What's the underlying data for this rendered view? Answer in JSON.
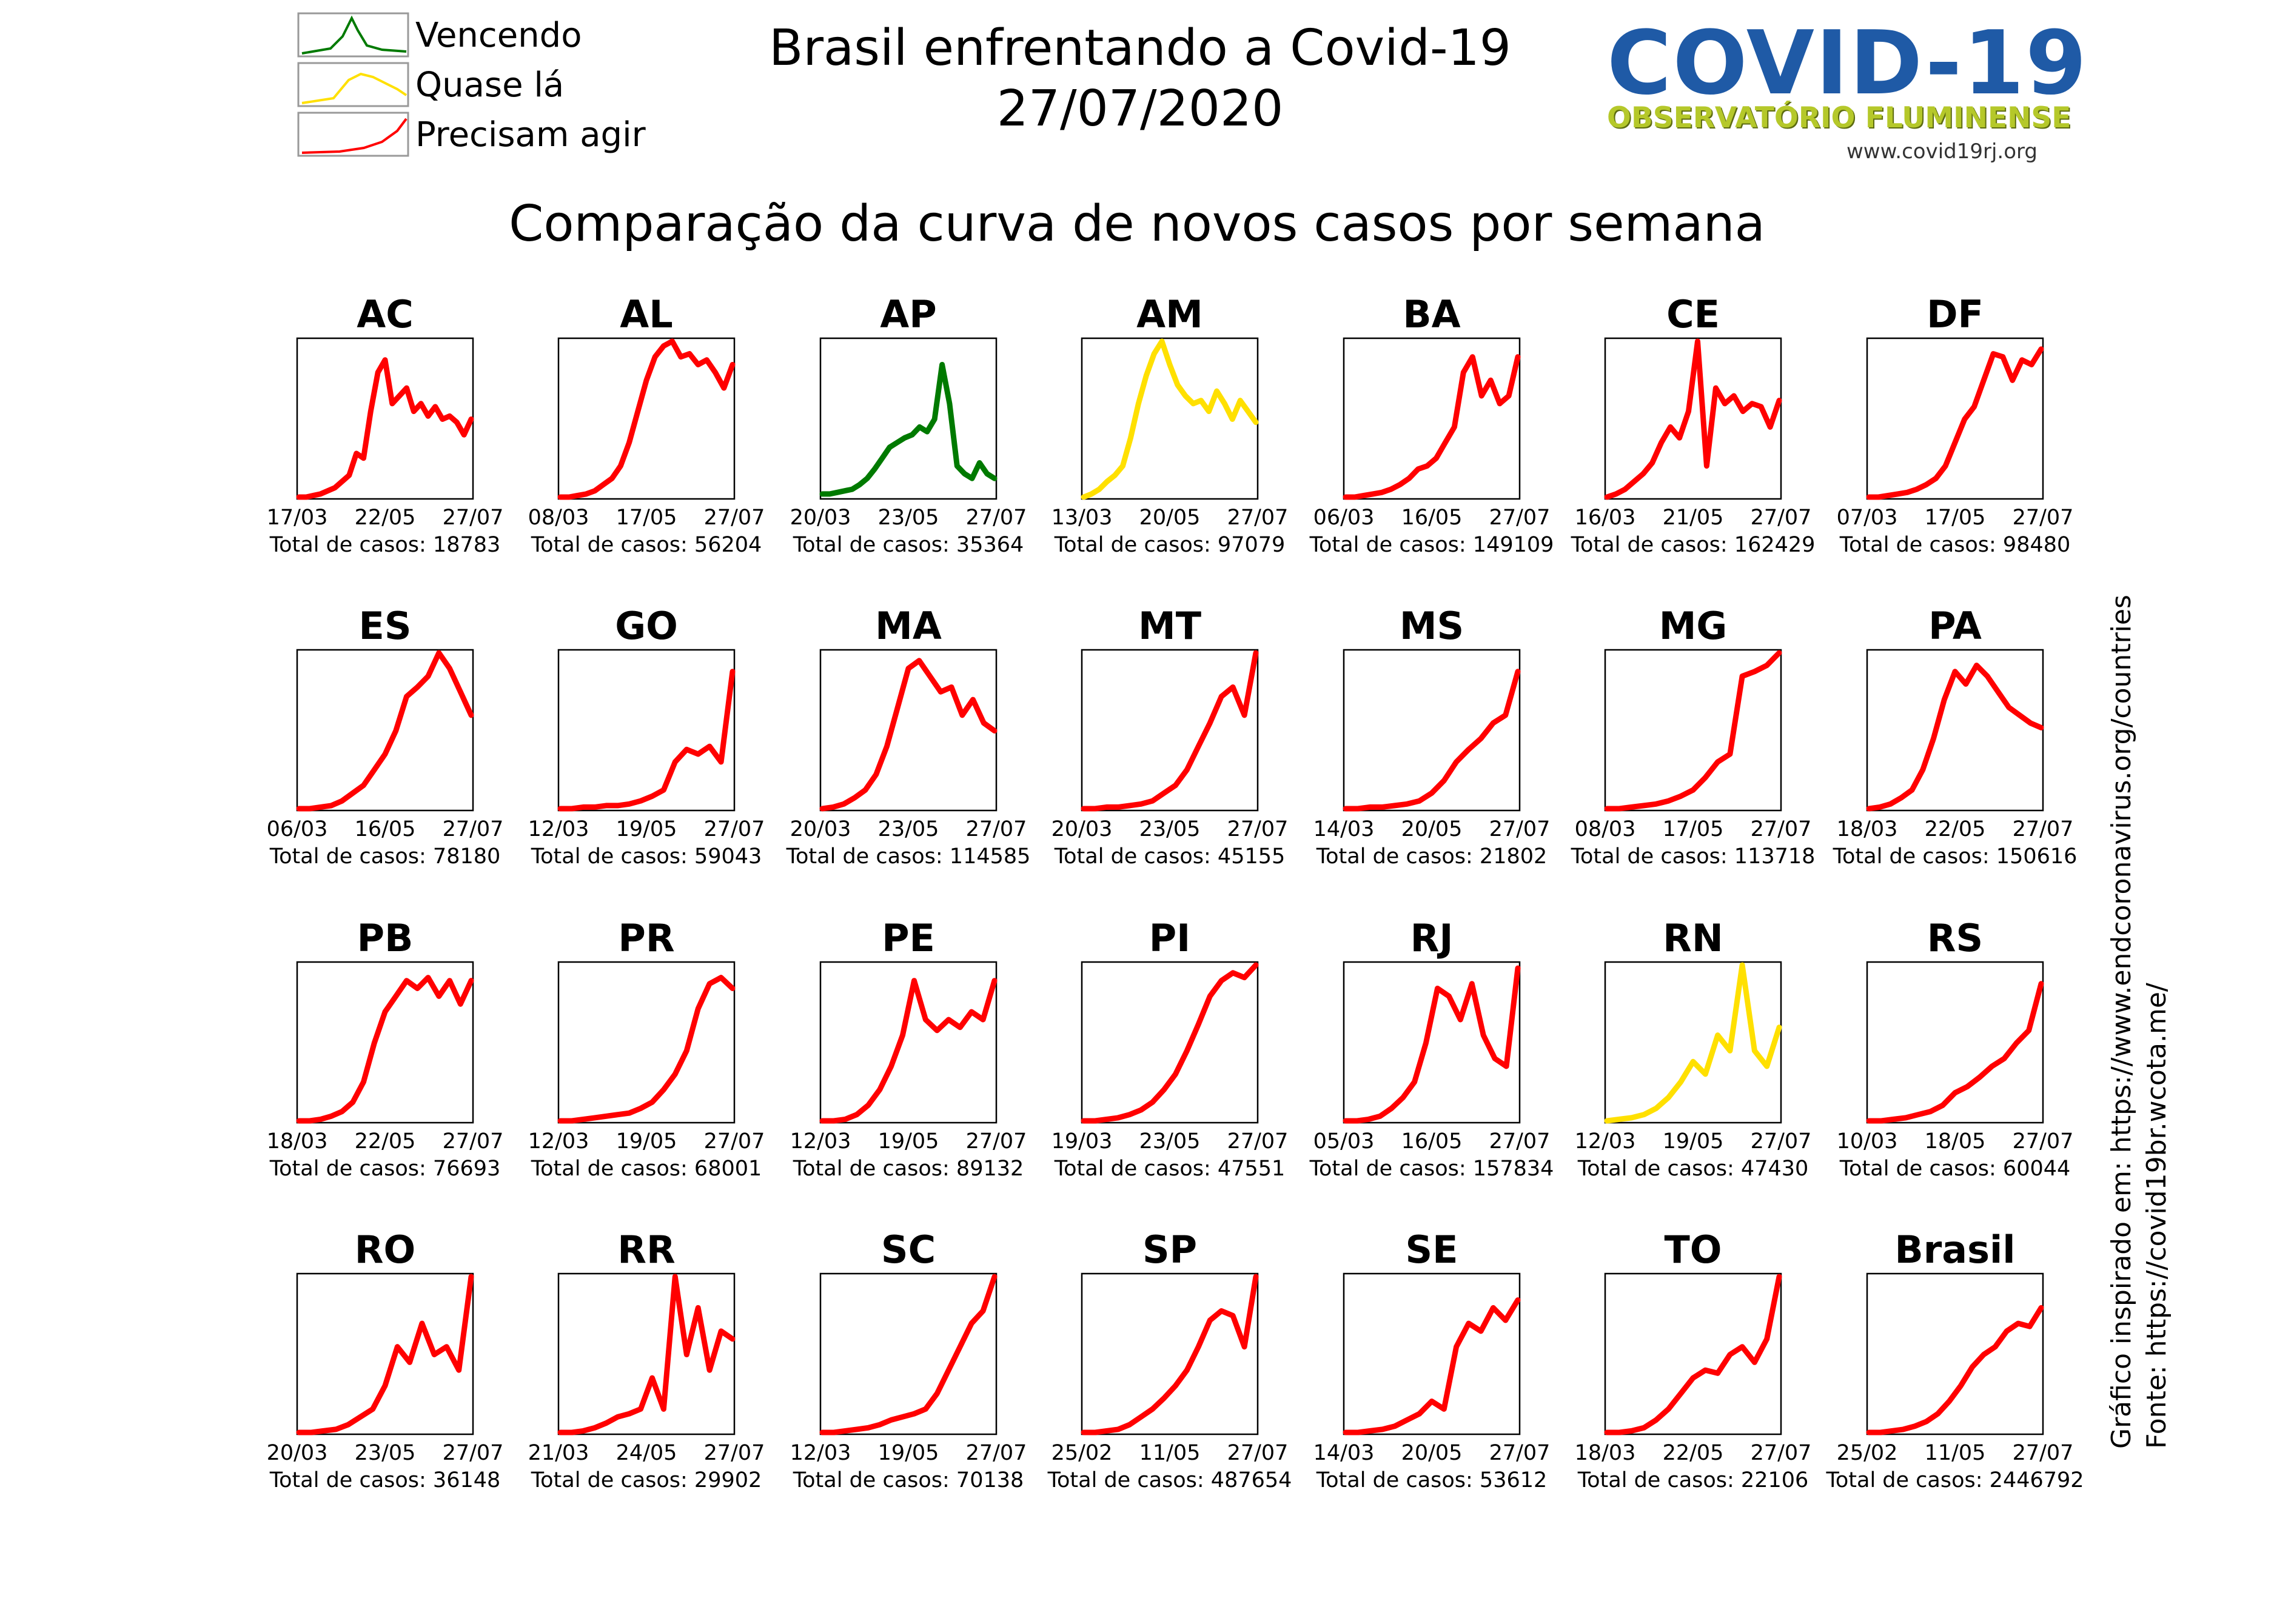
{
  "header": {
    "title_line1": "Brasil enfrentando a Covid-19",
    "title_line2": "27/07/2020",
    "subtitle": "Comparação da curva de novos casos por semana"
  },
  "legend": [
    {
      "label": "Vencendo",
      "color": "#007a00",
      "shape": "peak"
    },
    {
      "label": "Quase lá",
      "color": "#ffe000",
      "shape": "plateau"
    },
    {
      "label": "Precisam agir",
      "color": "#ff0000",
      "shape": "rising"
    }
  ],
  "logo": {
    "main": "COVID-19",
    "sub": "OBSERVATÓRIO FLUMINENSE",
    "url": "www.covid19rj.org"
  },
  "credits": {
    "line1": "Gráfico inspirado em: https://www.endcoronavirus.org/countries",
    "line2": "Fonte: https://covid19br.wcota.me/"
  },
  "total_label": "Total de casos:",
  "colors": {
    "green": "#007a00",
    "yellow": "#ffe000",
    "red": "#ff0000"
  },
  "chart_data": {
    "type": "line",
    "title": "Comparação da curva de novos casos por semana",
    "ylabel": "",
    "xlabel": "",
    "panels": [
      {
        "name": "AC",
        "color": "red",
        "ticks": [
          "17/03",
          "22/05",
          "27/07"
        ],
        "total": "18783",
        "values": [
          0,
          0,
          0.01,
          0.02,
          0.04,
          0.06,
          0.1,
          0.14,
          0.28,
          0.25,
          0.55,
          0.8,
          0.88,
          0.6,
          0.65,
          0.7,
          0.55,
          0.6,
          0.52,
          0.58,
          0.5,
          0.52,
          0.48,
          0.4,
          0.5
        ]
      },
      {
        "name": "AL",
        "color": "red",
        "ticks": [
          "08/03",
          "17/05",
          "27/07"
        ],
        "total": "56204",
        "values": [
          0,
          0,
          0.01,
          0.02,
          0.04,
          0.08,
          0.12,
          0.2,
          0.35,
          0.55,
          0.75,
          0.9,
          0.97,
          1.0,
          0.9,
          0.92,
          0.85,
          0.88,
          0.8,
          0.7,
          0.85
        ]
      },
      {
        "name": "AP",
        "color": "green",
        "ticks": [
          "20/03",
          "23/05",
          "27/07"
        ],
        "total": "35364",
        "values": [
          0.02,
          0.02,
          0.03,
          0.04,
          0.05,
          0.08,
          0.12,
          0.18,
          0.25,
          0.32,
          0.35,
          0.38,
          0.4,
          0.45,
          0.42,
          0.5,
          0.85,
          0.6,
          0.2,
          0.15,
          0.12,
          0.22,
          0.15,
          0.12
        ]
      },
      {
        "name": "AM",
        "color": "yellow",
        "ticks": [
          "13/03",
          "20/05",
          "27/07"
        ],
        "total": "97079",
        "values": [
          0,
          0.02,
          0.05,
          0.1,
          0.14,
          0.2,
          0.38,
          0.6,
          0.78,
          0.92,
          1.0,
          0.85,
          0.72,
          0.65,
          0.6,
          0.62,
          0.55,
          0.68,
          0.6,
          0.5,
          0.62,
          0.55,
          0.48
        ]
      },
      {
        "name": "BA",
        "color": "red",
        "ticks": [
          "06/03",
          "16/05",
          "27/07"
        ],
        "total": "149109",
        "values": [
          0,
          0,
          0.01,
          0.02,
          0.03,
          0.05,
          0.08,
          0.12,
          0.18,
          0.2,
          0.25,
          0.35,
          0.45,
          0.8,
          0.9,
          0.65,
          0.75,
          0.6,
          0.65,
          0.9
        ]
      },
      {
        "name": "CE",
        "color": "red",
        "ticks": [
          "16/03",
          "21/05",
          "27/07"
        ],
        "total": "162429",
        "values": [
          0,
          0.02,
          0.05,
          0.1,
          0.15,
          0.22,
          0.35,
          0.45,
          0.38,
          0.55,
          1.0,
          0.2,
          0.7,
          0.6,
          0.65,
          0.55,
          0.6,
          0.58,
          0.45,
          0.62
        ]
      },
      {
        "name": "DF",
        "color": "red",
        "ticks": [
          "07/03",
          "17/05",
          "27/07"
        ],
        "total": "98480",
        "values": [
          0,
          0,
          0.01,
          0.02,
          0.03,
          0.05,
          0.08,
          0.12,
          0.2,
          0.35,
          0.5,
          0.58,
          0.75,
          0.92,
          0.9,
          0.75,
          0.88,
          0.85,
          0.95
        ]
      },
      {
        "name": "ES",
        "color": "red",
        "ticks": [
          "06/03",
          "16/05",
          "27/07"
        ],
        "total": "78180",
        "values": [
          0,
          0,
          0.01,
          0.02,
          0.05,
          0.1,
          0.15,
          0.25,
          0.35,
          0.5,
          0.72,
          0.78,
          0.85,
          1.0,
          0.9,
          0.75,
          0.6
        ]
      },
      {
        "name": "GO",
        "color": "red",
        "ticks": [
          "12/03",
          "19/05",
          "27/07"
        ],
        "total": "59043",
        "values": [
          0,
          0,
          0.01,
          0.01,
          0.02,
          0.02,
          0.03,
          0.05,
          0.08,
          0.12,
          0.3,
          0.38,
          0.35,
          0.4,
          0.3,
          0.88
        ]
      },
      {
        "name": "MA",
        "color": "red",
        "ticks": [
          "20/03",
          "23/05",
          "27/07"
        ],
        "total": "114585",
        "values": [
          0,
          0.01,
          0.03,
          0.07,
          0.12,
          0.22,
          0.4,
          0.65,
          0.9,
          0.95,
          0.85,
          0.75,
          0.78,
          0.6,
          0.7,
          0.55,
          0.5
        ]
      },
      {
        "name": "MT",
        "color": "red",
        "ticks": [
          "20/03",
          "23/05",
          "27/07"
        ],
        "total": "45155",
        "values": [
          0,
          0,
          0.01,
          0.01,
          0.02,
          0.03,
          0.05,
          0.1,
          0.15,
          0.25,
          0.4,
          0.55,
          0.72,
          0.78,
          0.6,
          1.0
        ]
      },
      {
        "name": "MS",
        "color": "red",
        "ticks": [
          "14/03",
          "20/05",
          "27/07"
        ],
        "total": "21802",
        "values": [
          0,
          0,
          0.01,
          0.01,
          0.02,
          0.03,
          0.05,
          0.1,
          0.18,
          0.3,
          0.38,
          0.45,
          0.55,
          0.6,
          0.88
        ]
      },
      {
        "name": "MG",
        "color": "red",
        "ticks": [
          "08/03",
          "17/05",
          "27/07"
        ],
        "total": "113718",
        "values": [
          0,
          0,
          0.01,
          0.02,
          0.03,
          0.05,
          0.08,
          0.12,
          0.2,
          0.3,
          0.35,
          0.85,
          0.88,
          0.92,
          1.0
        ]
      },
      {
        "name": "PA",
        "color": "red",
        "ticks": [
          "18/03",
          "22/05",
          "27/07"
        ],
        "total": "150616",
        "values": [
          0,
          0.01,
          0.03,
          0.07,
          0.12,
          0.25,
          0.45,
          0.7,
          0.88,
          0.8,
          0.92,
          0.85,
          0.75,
          0.65,
          0.6,
          0.55,
          0.52
        ]
      },
      {
        "name": "PB",
        "color": "red",
        "ticks": [
          "18/03",
          "22/05",
          "27/07"
        ],
        "total": "76693",
        "values": [
          0,
          0,
          0.01,
          0.03,
          0.06,
          0.12,
          0.25,
          0.5,
          0.7,
          0.8,
          0.9,
          0.85,
          0.92,
          0.8,
          0.9,
          0.75,
          0.9
        ]
      },
      {
        "name": "PR",
        "color": "red",
        "ticks": [
          "12/03",
          "19/05",
          "27/07"
        ],
        "total": "68001",
        "values": [
          0,
          0,
          0.01,
          0.02,
          0.03,
          0.04,
          0.05,
          0.08,
          0.12,
          0.2,
          0.3,
          0.45,
          0.72,
          0.88,
          0.92,
          0.85
        ]
      },
      {
        "name": "PE",
        "color": "red",
        "ticks": [
          "12/03",
          "19/05",
          "27/07"
        ],
        "total": "89132",
        "values": [
          0,
          0,
          0.01,
          0.04,
          0.1,
          0.2,
          0.35,
          0.55,
          0.9,
          0.65,
          0.58,
          0.65,
          0.6,
          0.7,
          0.65,
          0.9
        ]
      },
      {
        "name": "PI",
        "color": "red",
        "ticks": [
          "19/03",
          "23/05",
          "27/07"
        ],
        "total": "47551",
        "values": [
          0,
          0,
          0.01,
          0.02,
          0.04,
          0.07,
          0.12,
          0.2,
          0.3,
          0.45,
          0.62,
          0.8,
          0.9,
          0.95,
          0.92,
          1.0
        ]
      },
      {
        "name": "RJ",
        "color": "red",
        "ticks": [
          "05/03",
          "16/05",
          "27/07"
        ],
        "total": "157834",
        "values": [
          0,
          0,
          0.01,
          0.03,
          0.08,
          0.15,
          0.25,
          0.5,
          0.85,
          0.8,
          0.65,
          0.88,
          0.55,
          0.4,
          0.35,
          0.98
        ]
      },
      {
        "name": "RN",
        "color": "yellow",
        "ticks": [
          "12/03",
          "19/05",
          "27/07"
        ],
        "total": "47430",
        "values": [
          0,
          0.01,
          0.02,
          0.04,
          0.08,
          0.15,
          0.25,
          0.38,
          0.3,
          0.55,
          0.45,
          1.0,
          0.45,
          0.35,
          0.6
        ]
      },
      {
        "name": "RS",
        "color": "red",
        "ticks": [
          "10/03",
          "18/05",
          "27/07"
        ],
        "total": "60044",
        "values": [
          0,
          0,
          0.01,
          0.02,
          0.04,
          0.06,
          0.1,
          0.18,
          0.22,
          0.28,
          0.35,
          0.4,
          0.5,
          0.58,
          0.88
        ]
      },
      {
        "name": "RO",
        "color": "red",
        "ticks": [
          "20/03",
          "23/05",
          "27/07"
        ],
        "total": "36148",
        "values": [
          0,
          0,
          0.01,
          0.02,
          0.05,
          0.1,
          0.15,
          0.3,
          0.55,
          0.45,
          0.7,
          0.5,
          0.55,
          0.4,
          1.0
        ]
      },
      {
        "name": "RR",
        "color": "red",
        "ticks": [
          "21/03",
          "24/05",
          "27/07"
        ],
        "total": "29902",
        "values": [
          0,
          0,
          0.01,
          0.03,
          0.06,
          0.1,
          0.12,
          0.15,
          0.35,
          0.15,
          1.0,
          0.5,
          0.8,
          0.4,
          0.65,
          0.6
        ]
      },
      {
        "name": "SC",
        "color": "red",
        "ticks": [
          "12/03",
          "19/05",
          "27/07"
        ],
        "total": "70138",
        "values": [
          0,
          0,
          0.01,
          0.02,
          0.03,
          0.05,
          0.08,
          0.1,
          0.12,
          0.15,
          0.25,
          0.4,
          0.55,
          0.7,
          0.78,
          1.0
        ]
      },
      {
        "name": "SP",
        "color": "red",
        "ticks": [
          "25/02",
          "11/05",
          "27/07"
        ],
        "total": "487654",
        "values": [
          0,
          0,
          0.01,
          0.02,
          0.05,
          0.1,
          0.15,
          0.22,
          0.3,
          0.4,
          0.55,
          0.72,
          0.78,
          0.75,
          0.55,
          1.0
        ]
      },
      {
        "name": "SE",
        "color": "red",
        "ticks": [
          "14/03",
          "20/05",
          "27/07"
        ],
        "total": "53612",
        "values": [
          0,
          0,
          0.01,
          0.02,
          0.04,
          0.08,
          0.12,
          0.2,
          0.15,
          0.55,
          0.7,
          0.65,
          0.8,
          0.72,
          0.85
        ]
      },
      {
        "name": "TO",
        "color": "red",
        "ticks": [
          "18/03",
          "22/05",
          "27/07"
        ],
        "total": "22106",
        "values": [
          0,
          0,
          0.01,
          0.03,
          0.08,
          0.15,
          0.25,
          0.35,
          0.4,
          0.38,
          0.5,
          0.55,
          0.45,
          0.6,
          1.0
        ]
      },
      {
        "name": "Brasil",
        "color": "red",
        "ticks": [
          "25/02",
          "11/05",
          "27/07"
        ],
        "total": "2446792",
        "values": [
          0,
          0,
          0.01,
          0.02,
          0.04,
          0.07,
          0.12,
          0.2,
          0.3,
          0.42,
          0.5,
          0.55,
          0.65,
          0.7,
          0.68,
          0.8
        ]
      }
    ]
  }
}
